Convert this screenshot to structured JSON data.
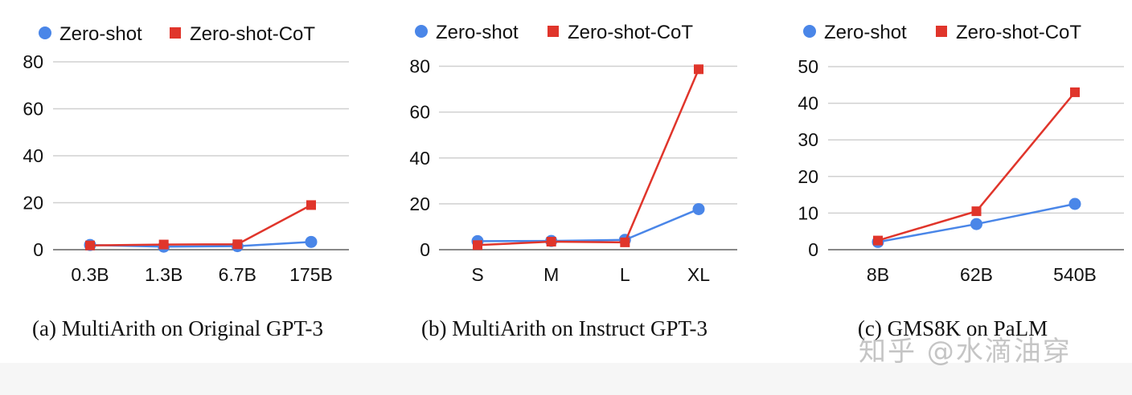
{
  "legend": {
    "zero_shot": "Zero-shot",
    "zero_shot_cot": "Zero-shot-CoT"
  },
  "colors": {
    "zero_shot": "#4a86e8",
    "zero_shot_cot": "#e0352b",
    "grid": "#d0d0d0"
  },
  "watermark": "知乎 @水滴油穿",
  "chart_data": [
    {
      "type": "line",
      "caption": "(a) MultiArith on Original GPT-3",
      "categories": [
        "0.3B",
        "1.3B",
        "6.7B",
        "175B"
      ],
      "ylim": [
        0,
        80
      ],
      "yticks": [
        0,
        20,
        40,
        60,
        80
      ],
      "series": [
        {
          "name": "Zero-shot",
          "values": [
            2.0,
            1.3,
            1.5,
            3.3
          ]
        },
        {
          "name": "Zero-shot-CoT",
          "values": [
            1.8,
            2.2,
            2.3,
            19.0
          ]
        }
      ]
    },
    {
      "type": "line",
      "caption": "(b) MultiArith on Instruct GPT-3",
      "categories": [
        "S",
        "M",
        "L",
        "XL"
      ],
      "ylim": [
        0,
        90
      ],
      "yticks": [
        0,
        20,
        40,
        60,
        80
      ],
      "series": [
        {
          "name": "Zero-shot",
          "values": [
            3.7,
            3.8,
            4.3,
            17.7
          ]
        },
        {
          "name": "Zero-shot-CoT",
          "values": [
            2.0,
            3.5,
            3.2,
            78.7
          ]
        }
      ]
    },
    {
      "type": "line",
      "caption": "(c) GMS8K on PaLM",
      "categories": [
        "8B",
        "62B",
        "540B"
      ],
      "ylim": [
        0,
        50
      ],
      "yticks": [
        0,
        10,
        20,
        30,
        40,
        50
      ],
      "series": [
        {
          "name": "Zero-shot",
          "values": [
            2.1,
            7.0,
            12.5
          ]
        },
        {
          "name": "Zero-shot-CoT",
          "values": [
            2.5,
            10.5,
            43.0
          ]
        }
      ]
    }
  ]
}
